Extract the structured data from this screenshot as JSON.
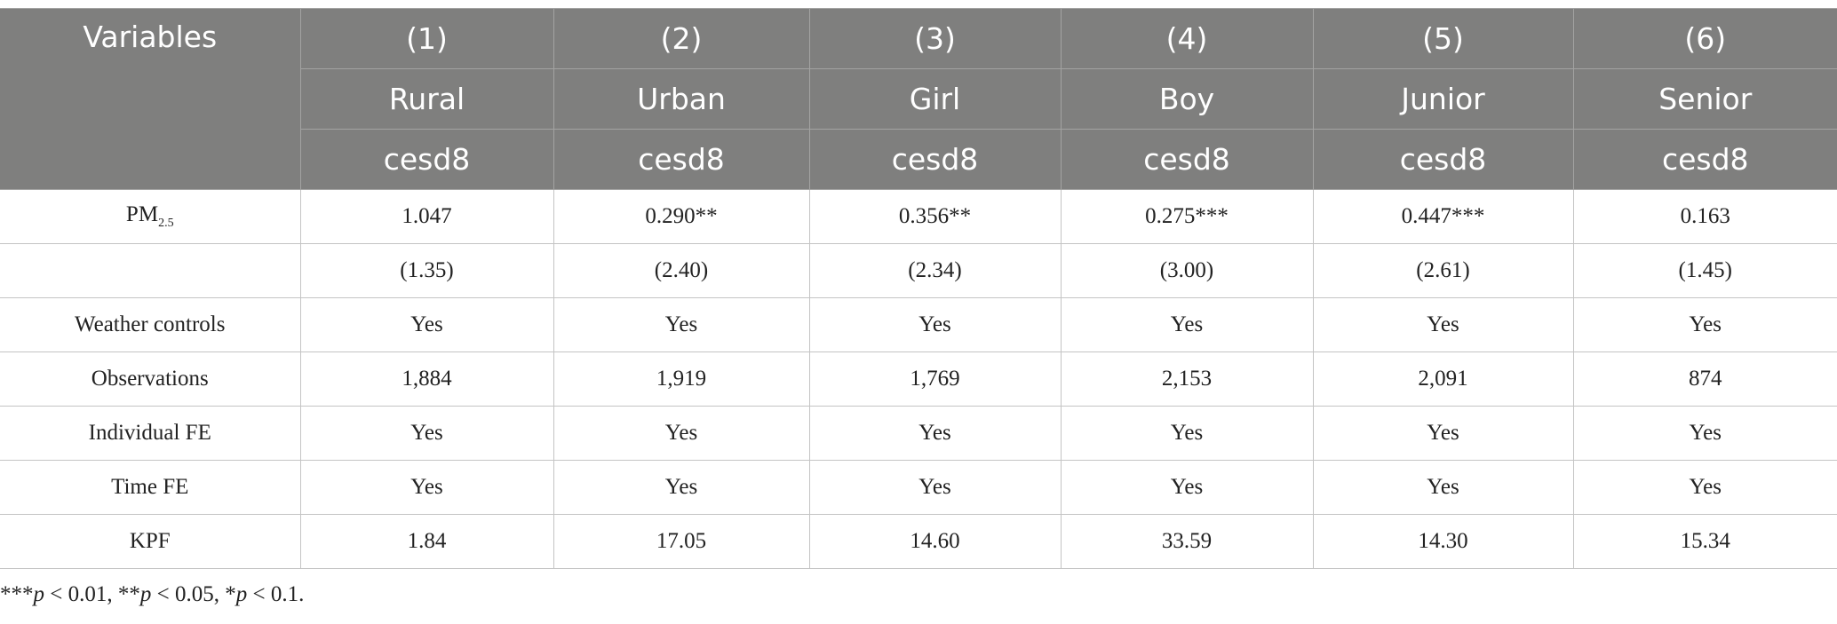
{
  "header": {
    "variables": "Variables",
    "columns": [
      {
        "number": "(1)",
        "group": "Rural",
        "outcome": "cesd8"
      },
      {
        "number": "(2)",
        "group": "Urban",
        "outcome": "cesd8"
      },
      {
        "number": "(3)",
        "group": "Girl",
        "outcome": "cesd8"
      },
      {
        "number": "(4)",
        "group": "Boy",
        "outcome": "cesd8"
      },
      {
        "number": "(5)",
        "group": "Junior",
        "outcome": "cesd8"
      },
      {
        "number": "(6)",
        "group": "Senior",
        "outcome": "cesd8"
      }
    ]
  },
  "table": {
    "rows": [
      {
        "label": "PM",
        "label_sub": "2.5",
        "cells": [
          "1.047",
          "0.290**",
          "0.356**",
          "0.275***",
          "0.447***",
          "0.163"
        ]
      },
      {
        "cells": [
          "(1.35)",
          "(2.40)",
          "(2.34)",
          "(3.00)",
          "(2.61)",
          "(1.45)"
        ]
      },
      {
        "label": "Weather controls",
        "cells": [
          "Yes",
          "Yes",
          "Yes",
          "Yes",
          "Yes",
          "Yes"
        ]
      },
      {
        "label": "Observations",
        "cells": [
          "1,884",
          "1,919",
          "1,769",
          "2,153",
          "2,091",
          "874"
        ]
      },
      {
        "label": "Individual FE",
        "cells": [
          "Yes",
          "Yes",
          "Yes",
          "Yes",
          "Yes",
          "Yes"
        ]
      },
      {
        "label": "Time FE",
        "cells": [
          "Yes",
          "Yes",
          "Yes",
          "Yes",
          "Yes",
          "Yes"
        ]
      },
      {
        "label": "KPF",
        "cells": [
          "1.84",
          "17.05",
          "14.60",
          "33.59",
          "14.30",
          "15.34"
        ]
      }
    ]
  },
  "footnote": "***p < 0.01, **p < 0.05, *p < 0.1."
}
